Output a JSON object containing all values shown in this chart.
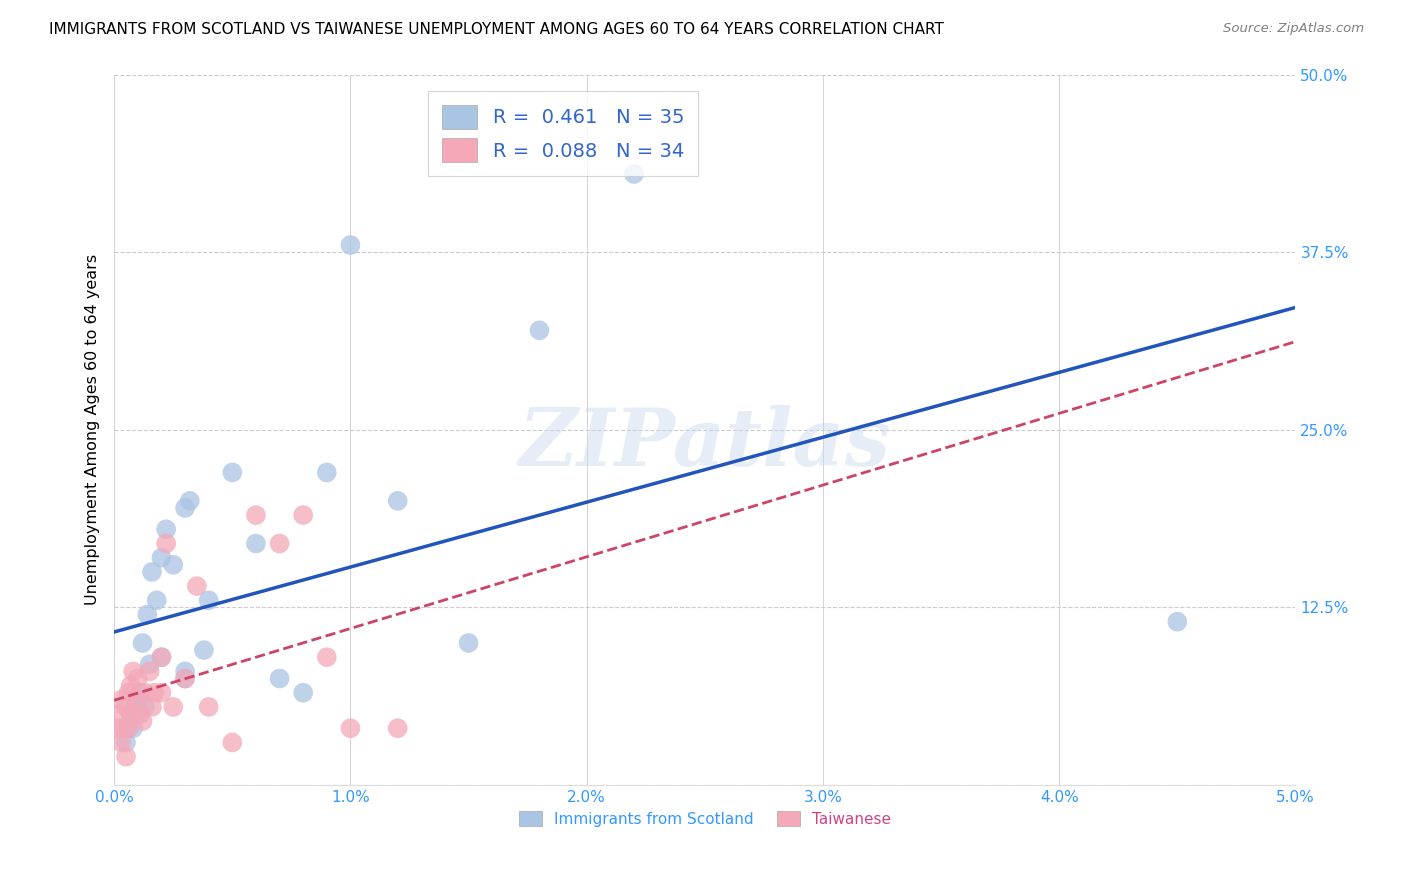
{
  "title": "IMMIGRANTS FROM SCOTLAND VS TAIWANESE UNEMPLOYMENT AMONG AGES 60 TO 64 YEARS CORRELATION CHART",
  "source": "Source: ZipAtlas.com",
  "ylabel": "Unemployment Among Ages 60 to 64 years",
  "xlabel_blue": "Immigrants from Scotland",
  "xlabel_pink": "Taiwanese",
  "xlim": [
    0.0,
    0.05
  ],
  "ylim": [
    0.0,
    0.5
  ],
  "xticks": [
    0.0,
    0.01,
    0.02,
    0.03,
    0.04,
    0.05
  ],
  "yticks": [
    0.0,
    0.125,
    0.25,
    0.375,
    0.5
  ],
  "xticklabels": [
    "0.0%",
    "1.0%",
    "2.0%",
    "3.0%",
    "4.0%",
    "5.0%"
  ],
  "yticklabels": [
    "",
    "12.5%",
    "25.0%",
    "37.5%",
    "50.0%"
  ],
  "legend_R_blue": "0.461",
  "legend_N_blue": "35",
  "legend_R_pink": "0.088",
  "legend_N_pink": "34",
  "blue_scatter_color": "#aac4e4",
  "blue_line_color": "#2255bb",
  "pink_scatter_color": "#f4a8b8",
  "pink_line_color": "#cc4466",
  "watermark": "ZIPatlas",
  "scotland_x": [
    0.0005,
    0.0006,
    0.0007,
    0.0008,
    0.0009,
    0.001,
    0.001,
    0.0011,
    0.0012,
    0.0013,
    0.0014,
    0.0015,
    0.0016,
    0.0018,
    0.002,
    0.002,
    0.0022,
    0.0025,
    0.003,
    0.003,
    0.003,
    0.0032,
    0.0038,
    0.004,
    0.005,
    0.006,
    0.007,
    0.008,
    0.009,
    0.01,
    0.012,
    0.015,
    0.018,
    0.022,
    0.045
  ],
  "scotland_y": [
    0.03,
    0.04,
    0.05,
    0.04,
    0.06,
    0.05,
    0.06,
    0.065,
    0.1,
    0.055,
    0.12,
    0.085,
    0.15,
    0.13,
    0.16,
    0.09,
    0.18,
    0.155,
    0.195,
    0.075,
    0.08,
    0.2,
    0.095,
    0.13,
    0.22,
    0.17,
    0.075,
    0.065,
    0.22,
    0.38,
    0.2,
    0.1,
    0.32,
    0.43,
    0.115
  ],
  "taiwan_x": [
    0.0001,
    0.0002,
    0.0003,
    0.0003,
    0.0004,
    0.0005,
    0.0005,
    0.0006,
    0.0006,
    0.0007,
    0.0007,
    0.0008,
    0.0009,
    0.001,
    0.0011,
    0.0012,
    0.0013,
    0.0015,
    0.0016,
    0.0017,
    0.002,
    0.002,
    0.0022,
    0.0025,
    0.003,
    0.0035,
    0.004,
    0.005,
    0.006,
    0.007,
    0.008,
    0.009,
    0.01,
    0.012
  ],
  "taiwan_y": [
    0.04,
    0.05,
    0.03,
    0.06,
    0.04,
    0.055,
    0.02,
    0.065,
    0.04,
    0.07,
    0.05,
    0.08,
    0.06,
    0.075,
    0.05,
    0.045,
    0.065,
    0.08,
    0.055,
    0.065,
    0.09,
    0.065,
    0.17,
    0.055,
    0.075,
    0.14,
    0.055,
    0.03,
    0.19,
    0.17,
    0.19,
    0.09,
    0.04,
    0.04
  ]
}
